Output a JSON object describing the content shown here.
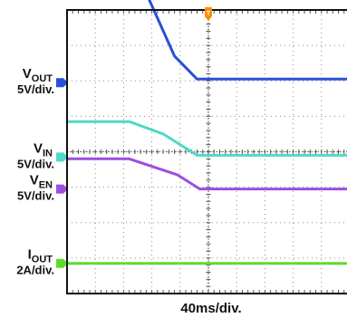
{
  "chart_data": {
    "type": "line",
    "x_scale_label": "40ms/div.",
    "x_range_divisions": [
      0,
      10
    ],
    "y_range_divisions": [
      0,
      8
    ],
    "grid": true,
    "trigger_marker": "T",
    "channels": [
      {
        "id": "ch1",
        "name_main": "V",
        "name_sub": "OUT",
        "scale": "5V/div.",
        "color": "#2a4fd8",
        "ground_div": 5.95,
        "x": [
          0,
          2.2,
          3.8,
          4.6,
          10
        ],
        "y": [
          3.6,
          3.6,
          0.75,
          0.1,
          0.1
        ]
      },
      {
        "id": "ch2",
        "name_main": "V",
        "name_sub": "IN",
        "scale": "5V/div.",
        "color": "#4fd9c9",
        "ground_div": 3.85,
        "x": [
          0,
          2.2,
          3.4,
          4.6,
          10
        ],
        "y": [
          1.0,
          1.0,
          0.65,
          0.05,
          0.05
        ]
      },
      {
        "id": "ch3",
        "name_main": "V",
        "name_sub": "EN",
        "scale": "5V/div.",
        "color": "#9b4fe0",
        "ground_div": 2.95,
        "x": [
          0,
          2.2,
          3.9,
          4.7,
          10
        ],
        "y": [
          0.85,
          0.85,
          0.4,
          0.0,
          0.0
        ]
      },
      {
        "id": "ch4",
        "name_main": "I",
        "name_sub": "OUT",
        "scale": "2A/div.",
        "color": "#5fdc2a",
        "ground_div": 0.85,
        "x": [
          0,
          10
        ],
        "y": [
          0.0,
          0.0
        ]
      }
    ]
  }
}
